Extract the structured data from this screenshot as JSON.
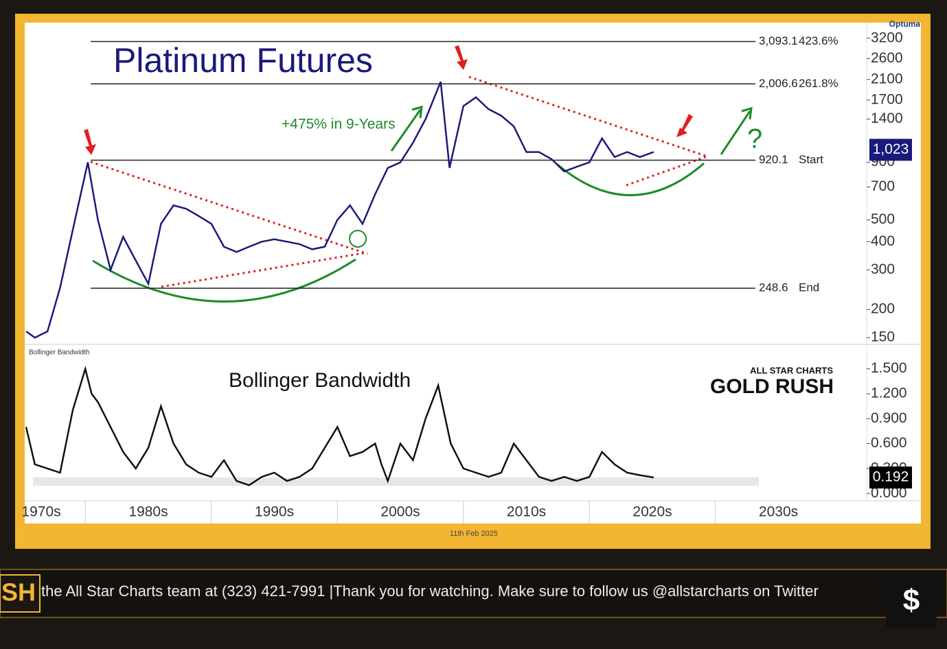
{
  "chart_data": [
    {
      "type": "line",
      "title": "Platinum Futures",
      "annotation": "+475% in 9-Years",
      "question": "?",
      "color": "#1a1a7a",
      "log_scale": true,
      "x": [
        1975.3,
        1976,
        1977,
        1978,
        1979,
        1980.2,
        1981,
        1982,
        1983,
        1984,
        1985,
        1986,
        1987,
        1988,
        1989,
        1990,
        1991,
        1992,
        1993,
        1994,
        1995,
        1996,
        1997,
        1998,
        1999,
        2000,
        2001,
        2002,
        2003,
        2004,
        2005,
        2006,
        2007,
        2008.2,
        2008.9,
        2009.5,
        2010,
        2011,
        2012,
        2013,
        2014,
        2015,
        2016,
        2017,
        2018,
        2019,
        2020,
        2021,
        2022,
        2023,
        2024,
        2025.1
      ],
      "values": [
        160,
        150,
        160,
        250,
        450,
        900,
        500,
        300,
        420,
        330,
        260,
        480,
        580,
        560,
        520,
        480,
        380,
        360,
        380,
        400,
        410,
        400,
        390,
        370,
        380,
        500,
        580,
        480,
        650,
        850,
        900,
        1100,
        1400,
        2050,
        850,
        1200,
        1600,
        1750,
        1550,
        1450,
        1300,
        1000,
        1000,
        930,
        820,
        860,
        900,
        1150,
        950,
        1000,
        950,
        1000
      ],
      "xlim": [
        1975.3,
        2042
      ],
      "ylim": [
        142,
        3700
      ],
      "xticks": [
        {
          "value": 1976.5,
          "label": "1970s"
        },
        {
          "value": 1985,
          "label": "1980s"
        },
        {
          "value": 1995,
          "label": "1990s"
        },
        {
          "value": 2005,
          "label": "2000s"
        },
        {
          "value": 2015,
          "label": "2010s"
        },
        {
          "value": 2025,
          "label": "2020s"
        },
        {
          "value": 2035,
          "label": "2030s"
        }
      ],
      "x_dividers": [
        1980,
        1990,
        2000,
        2010,
        2020,
        2030
      ],
      "yticks": [
        3200,
        2600,
        2100,
        1700,
        1400,
        900,
        700,
        500,
        400,
        300,
        200,
        150
      ],
      "levels": [
        {
          "value": 3093.1,
          "label": "3,093.1",
          "tag": "423.6%"
        },
        {
          "value": 2006.6,
          "label": "2,006.6",
          "tag": "261.8%"
        },
        {
          "value": 920.1,
          "label": "920.1",
          "tag": "Start"
        },
        {
          "value": 248.6,
          "label": "248.6",
          "tag": "End"
        }
      ],
      "current": {
        "value": 1023,
        "label": "1,023"
      }
    },
    {
      "type": "line",
      "title": "Bollinger Bandwidth",
      "panel_label": "Bollinger Bandwidth",
      "color": "#111111",
      "x": [
        1975.3,
        1976,
        1977,
        1978,
        1979,
        1980,
        1980.5,
        1981,
        1982,
        1983,
        1984,
        1985,
        1986,
        1987,
        1988,
        1989,
        1990,
        1991,
        1992,
        1993,
        1994,
        1995,
        1996,
        1997,
        1998,
        2000,
        2001,
        2002,
        2003,
        2003.5,
        2004,
        2005,
        2006,
        2007,
        2008,
        2009,
        2010,
        2011,
        2012,
        2013,
        2014,
        2015,
        2016,
        2017,
        2018,
        2019,
        2020,
        2021,
        2022,
        2023,
        2024,
        2025.1
      ],
      "values": [
        0.8,
        0.35,
        0.3,
        0.25,
        1.0,
        1.5,
        1.2,
        1.1,
        0.8,
        0.5,
        0.3,
        0.55,
        1.05,
        0.6,
        0.35,
        0.25,
        0.2,
        0.4,
        0.15,
        0.1,
        0.2,
        0.25,
        0.15,
        0.2,
        0.3,
        0.8,
        0.45,
        0.5,
        0.6,
        0.35,
        0.15,
        0.6,
        0.4,
        0.9,
        1.3,
        0.6,
        0.3,
        0.25,
        0.2,
        0.25,
        0.6,
        0.4,
        0.2,
        0.15,
        0.2,
        0.15,
        0.2,
        0.5,
        0.35,
        0.25,
        0.22,
        0.192
      ],
      "xlim": [
        1975.3,
        2042
      ],
      "ylim": [
        -0.13,
        1.77
      ],
      "yticks": [
        {
          "value": 1.5,
          "label": "1.500"
        },
        {
          "value": 1.2,
          "label": "1.200"
        },
        {
          "value": 0.9,
          "label": "0.900"
        },
        {
          "value": 0.6,
          "label": "0.600"
        },
        {
          "value": 0.3,
          "label": "0.300"
        },
        {
          "value": 0,
          "label": "0.000"
        }
      ],
      "current": {
        "value": 0.192,
        "label": "0.192"
      }
    }
  ],
  "provider": "Optuma",
  "date_label": "11th Feb 2025",
  "watermark": {
    "brand": "ALL STAR CHARTS",
    "title": "GOLD RUSH"
  },
  "ticker": {
    "logo": "SH",
    "text": "the All Star Charts team at (323) 421-7991 |Thank you for watching. Make sure to follow us @allstarcharts on Twitter"
  }
}
